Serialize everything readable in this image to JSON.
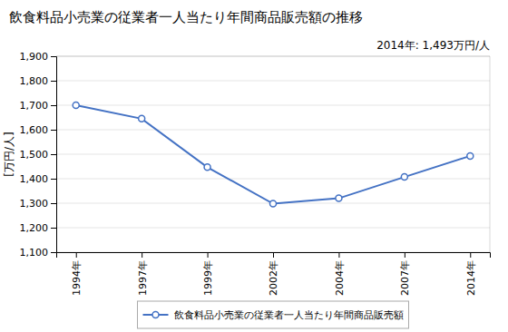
{
  "chart_data": {
    "type": "line",
    "title": "飲食料品小売業の従業者一人当たり年間商品販売額の推移",
    "ylabel": "[万円/人]",
    "annotation": "2014年: 1,493万円/人",
    "categories": [
      "1994年",
      "1997年",
      "1999年",
      "2002年",
      "2004年",
      "2007年",
      "2014年"
    ],
    "series": [
      {
        "name": "飲食料品小売業の従業者一人当たり年間商品販売額",
        "color": "#4472C4",
        "marker": "circle",
        "values": [
          1700,
          1645,
          1447,
          1298,
          1320,
          1407,
          1493
        ]
      }
    ],
    "ylim": [
      1100,
      1900
    ],
    "yticks": [
      {
        "value": 1100,
        "label": "1,100"
      },
      {
        "value": 1200,
        "label": "1,200"
      },
      {
        "value": 1300,
        "label": "1,300"
      },
      {
        "value": 1400,
        "label": "1,400"
      },
      {
        "value": 1500,
        "label": "1,500"
      },
      {
        "value": 1600,
        "label": "1,600"
      },
      {
        "value": 1700,
        "label": "1,700"
      },
      {
        "value": 1800,
        "label": "1,800"
      },
      {
        "value": 1900,
        "label": "1,900"
      }
    ],
    "grid": true,
    "legend": "bottom"
  }
}
